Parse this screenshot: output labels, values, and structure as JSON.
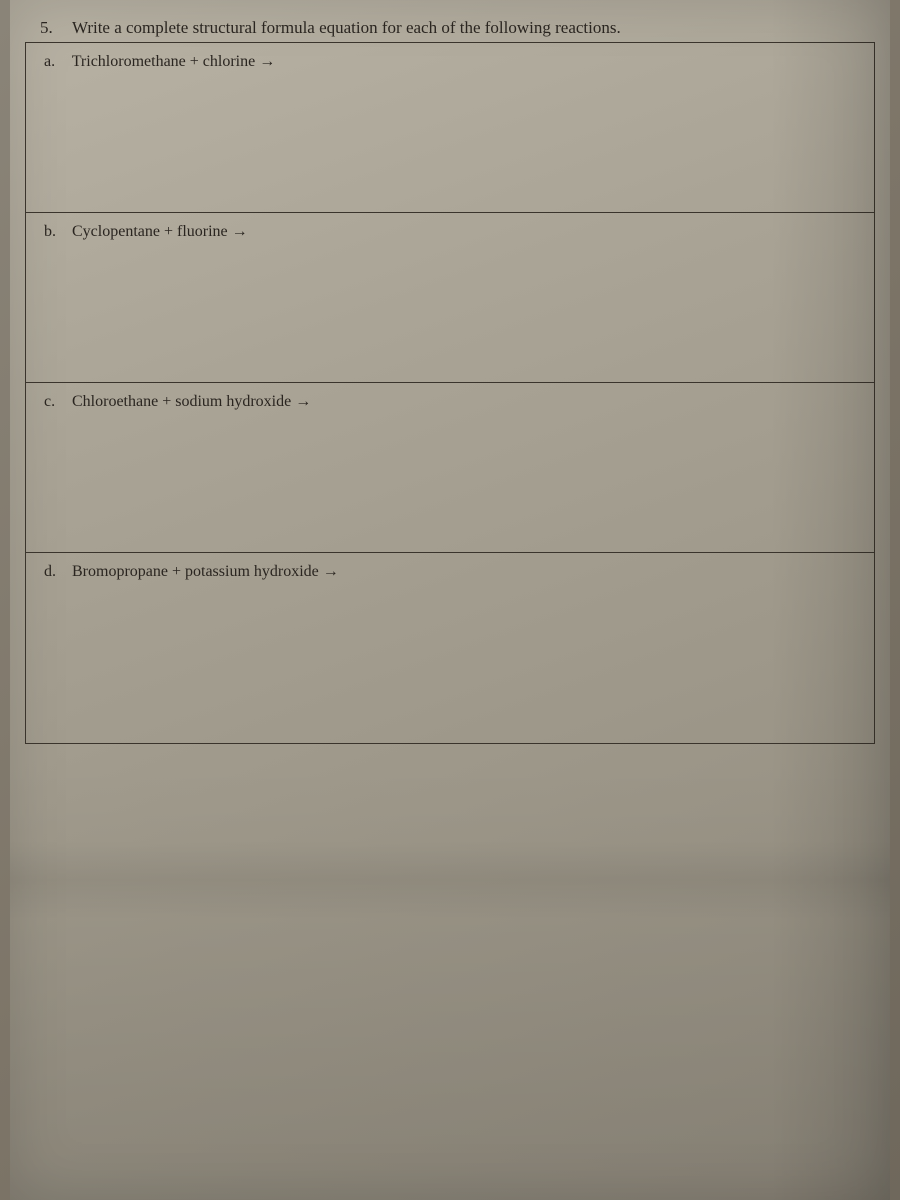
{
  "question": {
    "number": "5.",
    "prompt": "Write a complete structural formula equation for each of the following reactions."
  },
  "parts": [
    {
      "label": "a.",
      "text": "Trichloromethane  +  chlorine  →"
    },
    {
      "label": "b.",
      "text": "Cyclopentane  +  fluorine  →"
    },
    {
      "label": "c.",
      "text": "Chloroethane  +  sodium hydroxide  →"
    },
    {
      "label": "d.",
      "text": "Bromopropane  +   potassium hydroxide  →"
    }
  ],
  "styling": {
    "paper_bg_start": "#b8b2a4",
    "paper_bg_end": "#8f897c",
    "border_color": "#3a342c",
    "text_color": "#2a2520",
    "font_family": "Georgia, Times New Roman, serif",
    "question_fontsize": 17,
    "cell_fontsize": 16,
    "cell_min_height": 170,
    "border_width": 1.5
  }
}
